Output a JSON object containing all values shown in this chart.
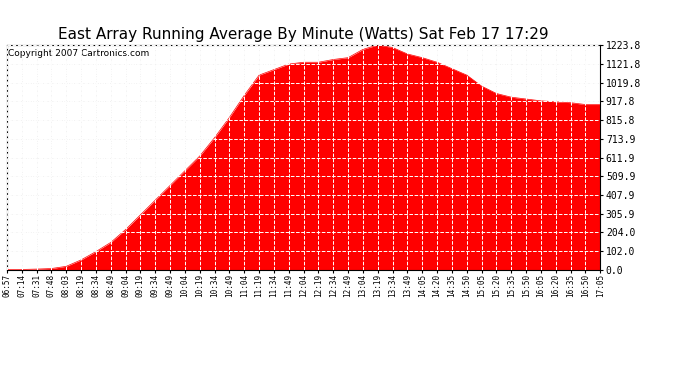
{
  "title": "East Array Running Average By Minute (Watts) Sat Feb 17 17:29",
  "copyright": "Copyright 2007 Cartronics.com",
  "fill_color": "#FF0000",
  "line_color": "#FF0000",
  "background_color": "#FFFFFF",
  "grid_color_bg": "#CCCCCC",
  "grid_color_fg": "#FFFFFF",
  "title_fontsize": 11,
  "copyright_fontsize": 6.5,
  "ylabel_values": [
    0.0,
    102.0,
    204.0,
    305.9,
    407.9,
    509.9,
    611.9,
    713.9,
    815.8,
    917.8,
    1019.8,
    1121.8,
    1223.8
  ],
  "x_times": [
    "06:57",
    "07:14",
    "07:31",
    "07:48",
    "08:03",
    "08:19",
    "08:34",
    "08:49",
    "09:04",
    "09:19",
    "09:34",
    "09:49",
    "10:04",
    "10:19",
    "10:34",
    "10:49",
    "11:04",
    "11:19",
    "11:34",
    "11:49",
    "12:04",
    "12:19",
    "12:34",
    "12:49",
    "13:04",
    "13:19",
    "13:34",
    "13:49",
    "14:05",
    "14:20",
    "14:35",
    "14:50",
    "15:05",
    "15:20",
    "15:35",
    "15:50",
    "16:05",
    "16:20",
    "16:35",
    "16:50",
    "17:05"
  ],
  "y_values": [
    2,
    3,
    5,
    8,
    20,
    55,
    100,
    150,
    220,
    300,
    380,
    460,
    540,
    620,
    720,
    830,
    950,
    1060,
    1090,
    1120,
    1130,
    1130,
    1145,
    1155,
    1200,
    1224,
    1210,
    1175,
    1155,
    1130,
    1095,
    1060,
    1000,
    960,
    940,
    930,
    920,
    915,
    910,
    900,
    900
  ],
  "ylim": [
    0,
    1223.8
  ],
  "tick_fontsize": 7,
  "xtick_fontsize": 5.5
}
